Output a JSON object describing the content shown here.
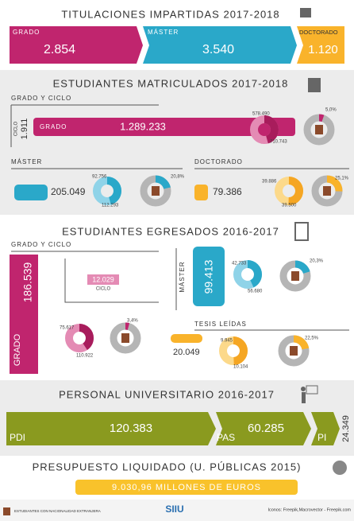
{
  "titulaciones": {
    "title": "TITULACIONES IMPARTIDAS 2017-2018",
    "grado": {
      "label": "GRADO",
      "value": "2.854"
    },
    "master": {
      "label": "MÁSTER",
      "value": "3.540"
    },
    "doctorado": {
      "label": "DOCTORADO",
      "value": "1.120"
    }
  },
  "matriculados": {
    "title": "ESTUDIANTES MATRICULADOS 2017-2018",
    "grado_ciclo": "GRADO Y CICLO",
    "ciclo": {
      "label": "CICLO",
      "value": "1.911"
    },
    "grado": {
      "label": "GRADO",
      "value": "1.289.233",
      "donut": [
        "578.490",
        "710.743"
      ],
      "foreign": "5,0%"
    },
    "master": {
      "label": "MÁSTER",
      "value": "205.049",
      "donut": [
        "92.756",
        "112.293"
      ],
      "foreign": "20,8%"
    },
    "doctorado": {
      "label": "DOCTORADO",
      "value": "79.386",
      "donut": [
        "39.886",
        "39.500"
      ],
      "foreign": "25,1%"
    }
  },
  "egresados": {
    "title": "ESTUDIANTES EGRESADOS 2016-2017",
    "grado_ciclo": "GRADO Y CICLO",
    "grado": {
      "label": "GRADO",
      "value": "186.539",
      "donut": [
        "75.617",
        "110.922"
      ],
      "foreign": "3,4%"
    },
    "ciclo": {
      "label": "CICLO",
      "value": "12.029"
    },
    "master": {
      "label": "MÁSTER",
      "value": "99.413",
      "donut": [
        "42.733",
        "56.680"
      ],
      "foreign": "20,3%"
    },
    "tesis": {
      "label": "TESIS LEÍDAS",
      "value": "20.049",
      "donut": [
        "9.945",
        "10.104"
      ],
      "foreign": "22,5%"
    }
  },
  "personal": {
    "title": "PERSONAL UNIVERSITARIO 2016-2017",
    "items": [
      {
        "label": "PDI",
        "value": "120.383"
      },
      {
        "label": "PAS",
        "value": "60.285"
      },
      {
        "label": "PI",
        "value": "24.349"
      }
    ]
  },
  "presupuesto": {
    "title": "PRESUPUESTO LIQUIDADO (U. PÚBLICAS 2015)",
    "value": "9.030,96 MILLONES DE EUROS"
  },
  "footer": {
    "legend": "ESTUDIANTES CON NACIONALIDAD EXTRANJERA",
    "logo": "SIIU",
    "credits": "Iconos: Freepik,Macrovector - Freepik.com"
  }
}
